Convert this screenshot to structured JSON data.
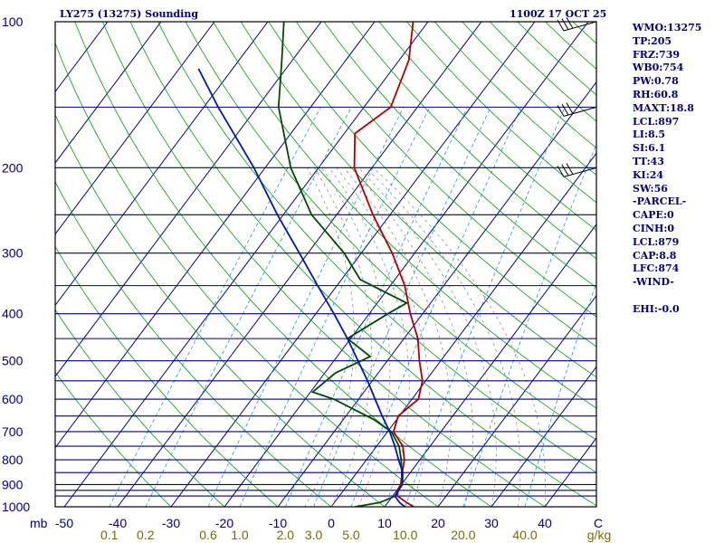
{
  "header": {
    "left_title": "LY275 (13275) Sounding",
    "right_title": "1100Z 17 OCT 25"
  },
  "stats": [
    "WMO:13275",
    "TP:205",
    "FRZ:739",
    "WB0:754",
    "PW:0.78",
    "RH:60.8",
    "MAXT:18.8",
    "LCL:897",
    "LI:8.5",
    "SI:6.1",
    "TT:43",
    "KI:24",
    "SW:56",
    "-PARCEL-",
    "CAPE:0",
    "CINH:0",
    "LCL:879",
    "CAP:8.8",
    "LFC:874",
    "-WIND-",
    "",
    "EHI:-0.0"
  ],
  "colors": {
    "frame": "#000000",
    "isobar": "#000080",
    "isotherm": "#00008b",
    "dry_adiabat": "#00a000",
    "moist_adiabat": "#7f7f7f",
    "mixing_ratio": "#1e9bd0",
    "temperature": "#b00000",
    "dewpoint": "#004a00",
    "parcel": "#0018b0",
    "label_pressure": "#00007a",
    "label_temperature": "#00007a",
    "label_mixing": "#7a6a00"
  },
  "chart_data": {
    "type": "skew-t",
    "y_scale": "log",
    "ylim": [
      1000,
      100
    ],
    "x_unit": "°C",
    "x_prefix": "mb",
    "y_ticks": [
      100,
      200,
      300,
      400,
      500,
      600,
      700,
      800,
      900,
      1000
    ],
    "x_ticks": [
      {
        "value": -50,
        "label": "-50"
      },
      {
        "value": -40,
        "label": "-40"
      },
      {
        "value": -30,
        "label": "-30"
      },
      {
        "value": -20,
        "label": "-20"
      },
      {
        "value": -10,
        "label": "-10"
      },
      {
        "value": 0,
        "label": "0"
      },
      {
        "value": 10,
        "label": "10"
      },
      {
        "value": 20,
        "label": "20"
      },
      {
        "value": 30,
        "label": "30"
      },
      {
        "value": 40,
        "label": "40"
      },
      {
        "value": 50,
        "label": "C"
      }
    ],
    "mixing_ratio_unit": "g/kg",
    "mixing_ratio_ticks": [
      "0.1",
      "0.2",
      "0.6",
      "1.0",
      "2.0",
      "3.0",
      "5.0",
      "10.0",
      "20.0",
      "40.0"
    ],
    "series": [
      {
        "key": "temperature",
        "points": [
          [
            1000,
            15.5
          ],
          [
            980,
            13.5
          ],
          [
            950,
            10.9
          ],
          [
            920,
            10.0
          ],
          [
            900,
            9.9
          ],
          [
            850,
            8.5
          ],
          [
            800,
            7.1
          ],
          [
            750,
            4.9
          ],
          [
            700,
            1.1
          ],
          [
            650,
            -0.2
          ],
          [
            600,
            1.2
          ],
          [
            550,
            -0.6
          ],
          [
            500,
            -4.0
          ],
          [
            450,
            -7.4
          ],
          [
            400,
            -12.3
          ],
          [
            350,
            -17.3
          ],
          [
            300,
            -24.2
          ],
          [
            250,
            -33.2
          ],
          [
            200,
            -43.3
          ],
          [
            170,
            -48.0
          ],
          [
            150,
            -45.0
          ],
          [
            120,
            -48.2
          ],
          [
            100,
            -52.8
          ]
        ]
      },
      {
        "key": "dewpoint",
        "points": [
          [
            1000,
            4.5
          ],
          [
            980,
            8.5
          ],
          [
            950,
            10.5
          ],
          [
            900,
            10.1
          ],
          [
            850,
            8.4
          ],
          [
            800,
            6.5
          ],
          [
            750,
            4.2
          ],
          [
            700,
            0.7
          ],
          [
            660,
            -4.4
          ],
          [
            600,
            -14.6
          ],
          [
            580,
            -19.6
          ],
          [
            530,
            -18.0
          ],
          [
            490,
            -13.8
          ],
          [
            450,
            -20.6
          ],
          [
            400,
            -16.5
          ],
          [
            380,
            -14.5
          ],
          [
            340,
            -26.5
          ],
          [
            300,
            -33.2
          ],
          [
            250,
            -44.7
          ],
          [
            200,
            -55.2
          ],
          [
            150,
            -66.0
          ],
          [
            120,
            -72.0
          ],
          [
            100,
            -77.0
          ]
        ]
      },
      {
        "key": "parcel",
        "points": [
          [
            1000,
            13.8
          ],
          [
            980,
            12.2
          ],
          [
            950,
            10.4
          ],
          [
            900,
            10.2
          ],
          [
            850,
            8.6
          ],
          [
            800,
            6.0
          ],
          [
            750,
            3.4
          ],
          [
            700,
            0.4
          ],
          [
            650,
            -3.2
          ],
          [
            600,
            -6.9
          ],
          [
            550,
            -10.9
          ],
          [
            500,
            -15.5
          ],
          [
            450,
            -20.6
          ],
          [
            400,
            -26.6
          ],
          [
            350,
            -33.6
          ],
          [
            300,
            -41.6
          ],
          [
            250,
            -51.1
          ],
          [
            200,
            -62.1
          ],
          [
            150,
            -77.3
          ],
          [
            125,
            -86.4
          ]
        ]
      }
    ],
    "wind_barbs": [
      {
        "pressure": 100
      },
      {
        "pressure": 150
      },
      {
        "pressure": 200
      }
    ]
  }
}
